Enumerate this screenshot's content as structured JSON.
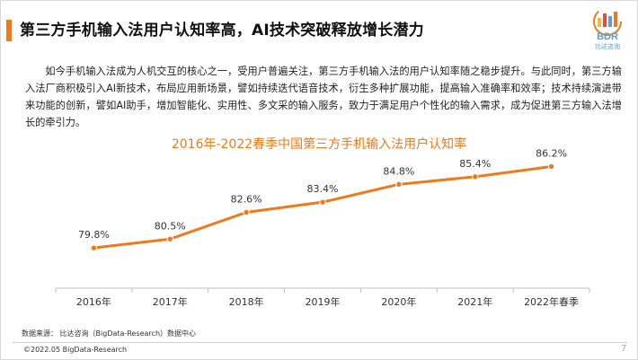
{
  "slide": {
    "title": "第三方手机输入法用户认知率高，AI技术突破释放增长潜力",
    "logo_text": "BDR",
    "logo_subtext": "比达咨询",
    "paragraph": "如今手机输入法成为人机交互的核心之一，受用户普遍关注，第三方手机输入法的用户认知率随之稳步提升。与此同时，第三方输入法厂商积极引入AI新技术，布局应用新场景，譬如持续迭代语音技术，衍生多种扩展功能，提高输入准确率和效率；技术持续演进带来功能的创新，譬如AI助手，增加智能化、实用性、多文采的输入服务，致力于满足用户个性化的输入需求，成为促进第三方输入法增长的牵引力。",
    "source": "数据来源： 比达咨询（BigData-Research）数据中心",
    "copyright": "©2022.05 BigData-Research",
    "page_number": "7",
    "accent_color": "#f07a1a",
    "logo_colors": [
      "#f07a1a",
      "#5aa0d8",
      "#e84a3a",
      "#f5b93a"
    ]
  },
  "chart_data": {
    "type": "line",
    "title": "2016年-2022春季中国第三方手机输入法用户认知率",
    "categories": [
      "2016年",
      "2017年",
      "2018年",
      "2019年",
      "2020年",
      "2021年",
      "2022年春季"
    ],
    "series": [
      {
        "values": [
          79.8,
          80.5,
          82.6,
          83.4,
          84.8,
          85.4,
          86.2
        ],
        "labels": [
          "79.8%",
          "80.5%",
          "82.6%",
          "83.4%",
          "84.8%",
          "85.4%",
          "86.2%"
        ],
        "color": "#f07a1a"
      }
    ],
    "ylim": [
      76,
      88
    ],
    "grid": false,
    "legend": "none"
  }
}
